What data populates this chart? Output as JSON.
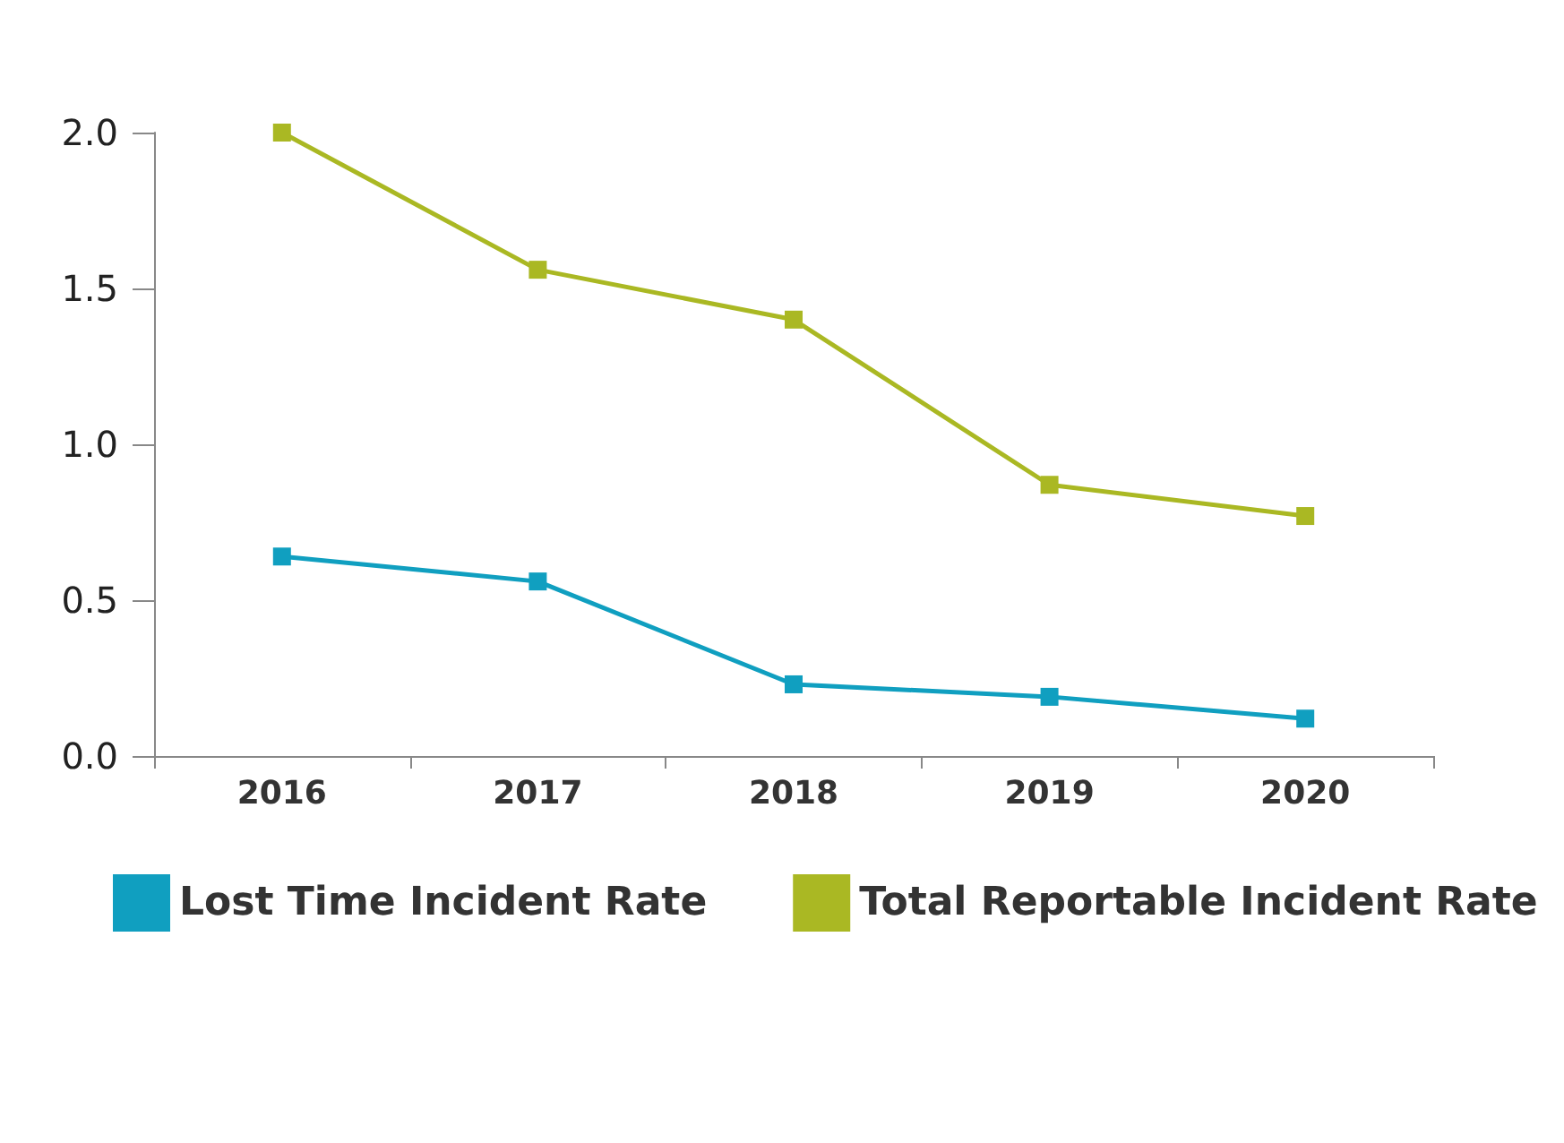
{
  "chart_data": {
    "type": "line",
    "categories": [
      "2016",
      "2017",
      "2018",
      "2019",
      "2020"
    ],
    "series": [
      {
        "name": "Lost Time Incident Rate",
        "color": "#109fc0",
        "values": [
          0.64,
          0.56,
          0.23,
          0.19,
          0.12
        ]
      },
      {
        "name": "Total Reportable Incident Rate",
        "color": "#aab823",
        "values": [
          2.0,
          1.56,
          1.4,
          0.87,
          0.77
        ]
      }
    ],
    "ylim": [
      0,
      2
    ],
    "yticks": [
      {
        "value": 0,
        "label": "0.0"
      },
      {
        "value": 0.5,
        "label": "0.5"
      },
      {
        "value": 1,
        "label": "1.0"
      },
      {
        "value": 1.5,
        "label": "1.5"
      },
      {
        "value": 2,
        "label": "2.0"
      }
    ],
    "grid": false,
    "legend": "bottom left",
    "marker": "square",
    "line_style": "solid"
  }
}
